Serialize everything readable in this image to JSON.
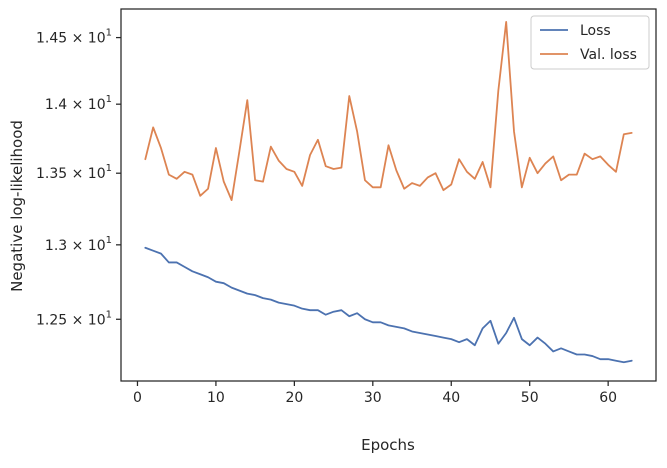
{
  "chart_data": {
    "type": "line",
    "title": "",
    "xlabel": "Epochs",
    "ylabel": "Negative log-likelihood",
    "y_scale": "log",
    "xlim": [
      -2.1,
      66.1
    ],
    "ylim": [
      12.1,
      14.72
    ],
    "grid": false,
    "legend_position": "top-right",
    "x_ticks": [
      {
        "value": 0,
        "label": "0"
      },
      {
        "value": 10,
        "label": "10"
      },
      {
        "value": 20,
        "label": "20"
      },
      {
        "value": 30,
        "label": "30"
      },
      {
        "value": 40,
        "label": "40"
      },
      {
        "value": 50,
        "label": "50"
      },
      {
        "value": 60,
        "label": "60"
      }
    ],
    "y_ticks": [
      {
        "value": 12.5,
        "mantissa": "1.25",
        "times": "×",
        "base": "10",
        "exp": "1"
      },
      {
        "value": 13.0,
        "mantissa": "1.3",
        "times": "×",
        "base": "10",
        "exp": "1"
      },
      {
        "value": 13.5,
        "mantissa": "1.35",
        "times": "×",
        "base": "10",
        "exp": "1"
      },
      {
        "value": 14.0,
        "mantissa": "1.4",
        "times": "×",
        "base": "10",
        "exp": "1"
      },
      {
        "value": 14.5,
        "mantissa": "1.45",
        "times": "×",
        "base": "10",
        "exp": "1"
      }
    ],
    "x": [
      1,
      2,
      3,
      4,
      5,
      6,
      7,
      8,
      9,
      10,
      11,
      12,
      13,
      14,
      15,
      16,
      17,
      18,
      19,
      20,
      21,
      22,
      23,
      24,
      25,
      26,
      27,
      28,
      29,
      30,
      31,
      32,
      33,
      34,
      35,
      36,
      37,
      38,
      39,
      40,
      41,
      42,
      43,
      44,
      45,
      46,
      47,
      48,
      49,
      50,
      51,
      52,
      53,
      54,
      55,
      56,
      57,
      58,
      59,
      60,
      61,
      62,
      63
    ],
    "series": [
      {
        "name": "Loss",
        "color": "#4c72b0",
        "values": [
          12.98,
          12.96,
          12.94,
          12.88,
          12.88,
          12.85,
          12.82,
          12.8,
          12.78,
          12.75,
          12.74,
          12.71,
          12.69,
          12.67,
          12.66,
          12.64,
          12.63,
          12.61,
          12.6,
          12.59,
          12.57,
          12.56,
          12.56,
          12.53,
          12.55,
          12.56,
          12.52,
          12.54,
          12.5,
          12.48,
          12.48,
          12.46,
          12.45,
          12.44,
          12.42,
          12.41,
          12.4,
          12.39,
          12.38,
          12.37,
          12.35,
          12.37,
          12.33,
          12.44,
          12.49,
          12.34,
          12.41,
          12.51,
          12.37,
          12.33,
          12.38,
          12.34,
          12.29,
          12.31,
          12.29,
          12.27,
          12.27,
          12.26,
          12.24,
          12.24,
          12.23,
          12.22,
          12.23
        ]
      },
      {
        "name": "Val. loss",
        "color": "#dd8452",
        "values": [
          13.6,
          13.83,
          13.68,
          13.49,
          13.46,
          13.51,
          13.49,
          13.34,
          13.39,
          13.68,
          13.44,
          13.31,
          13.66,
          14.03,
          13.45,
          13.44,
          13.69,
          13.59,
          13.53,
          13.51,
          13.41,
          13.63,
          13.74,
          13.55,
          13.53,
          13.54,
          14.06,
          13.8,
          13.45,
          13.4,
          13.4,
          13.7,
          13.52,
          13.39,
          13.43,
          13.41,
          13.47,
          13.5,
          13.38,
          13.42,
          13.6,
          13.51,
          13.46,
          13.58,
          13.4,
          14.1,
          14.62,
          13.8,
          13.4,
          13.61,
          13.5,
          13.57,
          13.62,
          13.45,
          13.49,
          13.49,
          13.64,
          13.6,
          13.62,
          13.56,
          13.51,
          13.78,
          13.79
        ]
      }
    ]
  }
}
